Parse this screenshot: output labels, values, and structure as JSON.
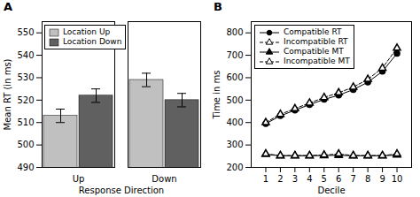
{
  "chart_data": [
    {
      "type": "bar",
      "title": "A",
      "categories": [
        "Up",
        "Down"
      ],
      "series": [
        {
          "name": "Location Up",
          "color": "#c0c0c0",
          "values": [
            513,
            529
          ],
          "errors": [
            3,
            3
          ]
        },
        {
          "name": "Location Down",
          "color": "#606060",
          "values": [
            522,
            520
          ],
          "errors": [
            3,
            3
          ]
        }
      ],
      "xlabel": "Response Direction",
      "ylabel": "Mean RT (in ms)",
      "ylim": [
        490,
        555
      ],
      "yticks": [
        490,
        500,
        510,
        520,
        530,
        540,
        550
      ],
      "legend": "upper left"
    },
    {
      "type": "line",
      "title": "B",
      "x": [
        1,
        2,
        3,
        4,
        5,
        6,
        7,
        8,
        9,
        10
      ],
      "series": [
        {
          "name": "Compatible RT",
          "color": "black",
          "marker": "circle",
          "line_style": "solid",
          "values": [
            395,
            430,
            455,
            480,
            503,
            522,
            547,
            580,
            628,
            708
          ]
        },
        {
          "name": "Incompatible RT",
          "color": "black",
          "marker": "triangle-open",
          "line_style": "dashed",
          "values": [
            400,
            437,
            462,
            487,
            512,
            533,
            558,
            593,
            643,
            732
          ]
        },
        {
          "name": "Compatible MT",
          "color": "black",
          "marker": "triangle",
          "line_style": "solid",
          "values": [
            258,
            252,
            252,
            252,
            253,
            254,
            252,
            252,
            252,
            255
          ]
        },
        {
          "name": "Incompatible MT",
          "color": "black",
          "marker": "triangle-open",
          "line_style": "dashed",
          "values": [
            260,
            253,
            253,
            253,
            255,
            260,
            253,
            253,
            253,
            260
          ]
        }
      ],
      "xlabel": "Decile",
      "ylabel": "Time in ms",
      "xlim": [
        0,
        11
      ],
      "xticks": [
        1,
        2,
        3,
        4,
        5,
        6,
        7,
        8,
        9,
        10
      ],
      "ylim": [
        200,
        850
      ],
      "yticks": [
        200,
        300,
        400,
        500,
        600,
        700,
        800
      ],
      "legend": "upper left"
    }
  ]
}
